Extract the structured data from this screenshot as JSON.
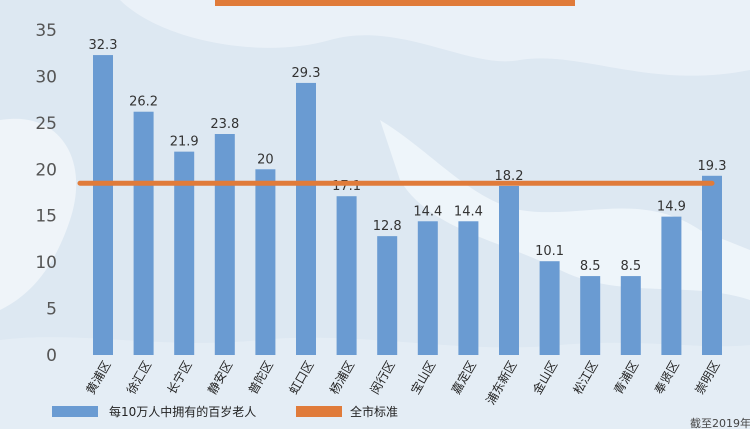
{
  "chart_data": {
    "type": "bar",
    "title": "",
    "xlabel": "",
    "ylabel": "",
    "ylim": [
      0,
      35
    ],
    "yticks": [
      0,
      5,
      10,
      15,
      20,
      25,
      30,
      35
    ],
    "categories": [
      "黄浦区",
      "徐汇区",
      "长宁区",
      "静安区",
      "普陀区",
      "虹口区",
      "杨浦区",
      "闵行区",
      "宝山区",
      "嘉定区",
      "浦东新区",
      "金山区",
      "松江区",
      "青浦区",
      "奉贤区",
      "崇明区"
    ],
    "series": [
      {
        "name": "每10万人中拥有的百岁老人",
        "color": "#6a9bd2",
        "values": [
          32.3,
          26.2,
          21.9,
          23.8,
          20,
          29.3,
          17.1,
          12.8,
          14.4,
          14.4,
          18.2,
          10.1,
          8.5,
          8.5,
          14.9,
          19.3
        ],
        "labels": [
          "32.3",
          "26.2",
          "21.9",
          "23.8",
          "20",
          "29.3",
          "17.1",
          "12.8",
          "14.4",
          "14.4",
          "18.2",
          "10.1",
          "8.5",
          "8.5",
          "14.9",
          "19.3"
        ]
      }
    ],
    "reference_line": {
      "name": "全市标准",
      "color": "#e07b3a",
      "value": 18.5
    },
    "legend_position": "bottom-left",
    "grid": false
  },
  "footnote": "截至2019年"
}
